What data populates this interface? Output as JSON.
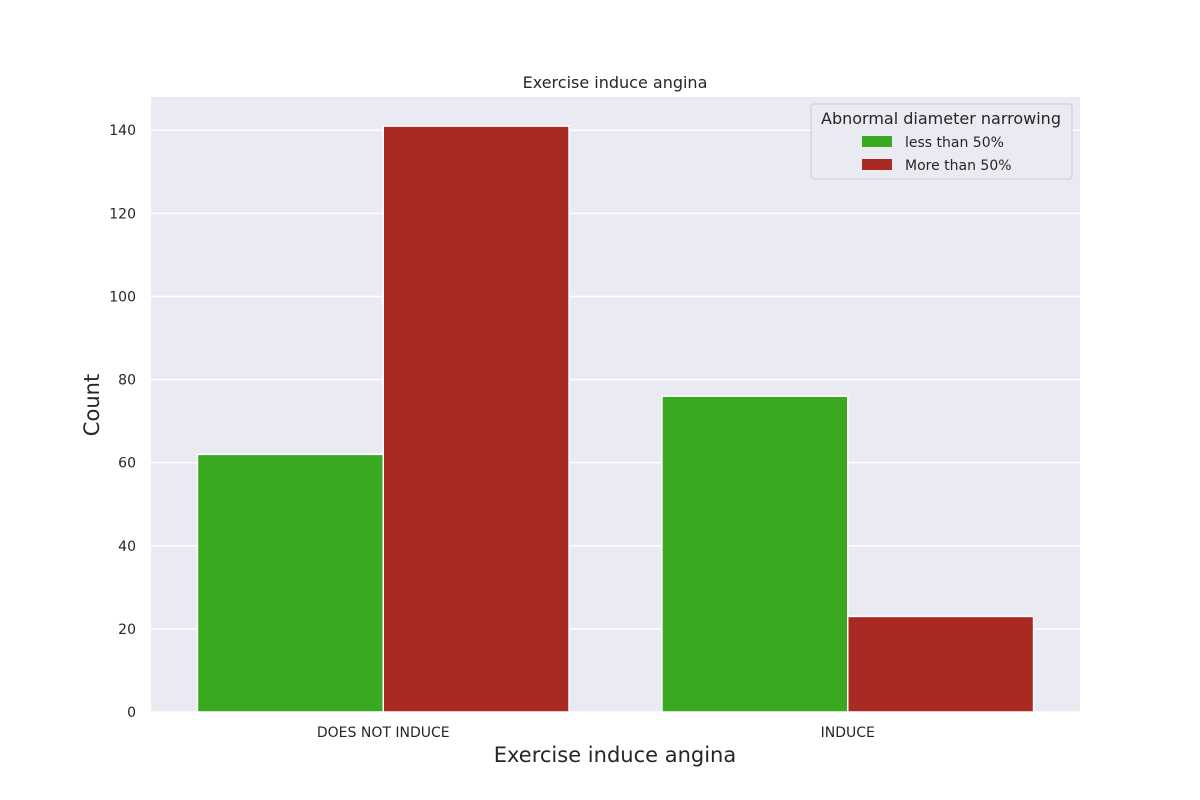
{
  "chart_data": {
    "type": "bar",
    "title": "Exercise induce angina",
    "xlabel": "Exercise induce angina",
    "ylabel": "Count",
    "categories": [
      "DOES NOT INDUCE",
      "INDUCE"
    ],
    "series": [
      {
        "name": "less than 50%",
        "values": [
          62,
          76
        ],
        "color": "#3ba822"
      },
      {
        "name": "More than 50%",
        "values": [
          141,
          23
        ],
        "color": "#a82a22"
      }
    ],
    "ylim": [
      0,
      148
    ],
    "yticks": [
      0,
      20,
      40,
      60,
      80,
      100,
      120,
      140
    ],
    "grid": true,
    "legend": {
      "title": "Abnormal diameter narrowing",
      "placement": "top-right"
    },
    "background_color": "#eaeaf2"
  }
}
